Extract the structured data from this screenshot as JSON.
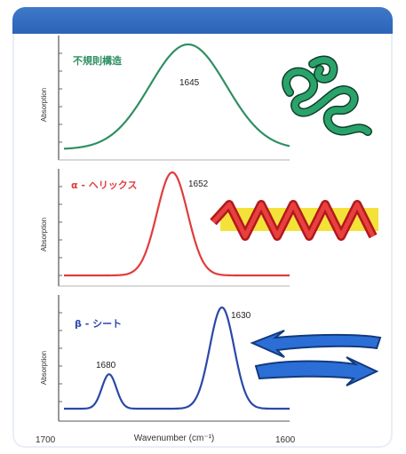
{
  "colors": {
    "green": "#2f8f63",
    "red": "#e03c3c",
    "blue": "#2a48a8",
    "header": "#2c63b8"
  },
  "chart_data": [
    {
      "type": "line",
      "label": "不規則構造",
      "ylabel": "Absorption",
      "peak_label": "1645",
      "peaks": [
        {
          "x": 1645,
          "amp": 1.0,
          "width": 17
        }
      ],
      "xlim": [
        1700,
        1600
      ],
      "color": "#2f8f63"
    },
    {
      "type": "line",
      "label": "α - ヘリックス",
      "ylabel": "Absorption",
      "peak_label": "1652",
      "peaks": [
        {
          "x": 1652,
          "amp": 1.0,
          "width": 6.8
        }
      ],
      "xlim": [
        1700,
        1600
      ],
      "color": "#e03c3c"
    },
    {
      "type": "line",
      "label": "β - シート",
      "ylabel": "Absorption",
      "peak_labels": [
        "1680",
        "1630"
      ],
      "peaks": [
        {
          "x": 1680,
          "amp": 0.34,
          "width": 3.2
        },
        {
          "x": 1630,
          "amp": 1.0,
          "width": 5.4
        }
      ],
      "xlim": [
        1700,
        1600
      ],
      "color": "#2a48a8"
    }
  ],
  "x_axis": {
    "label": "Wavenumber (cm⁻¹)",
    "tick_left": "1700",
    "tick_right": "1600"
  }
}
